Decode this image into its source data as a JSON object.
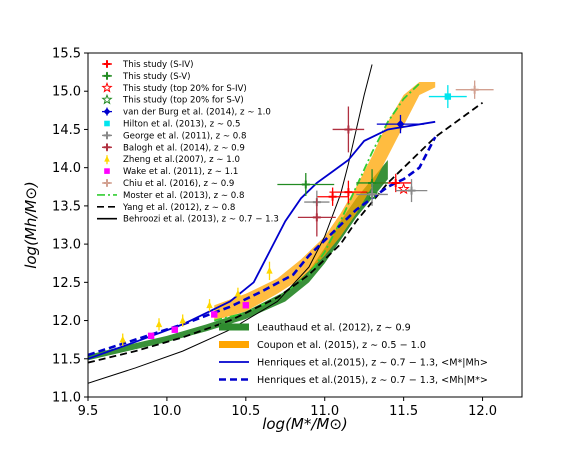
{
  "chart_data": {
    "type": "line",
    "xlabel": "log(M*/M⊙)",
    "ylabel": "log(Mh/M⊙)",
    "xlim": [
      9.5,
      12.25
    ],
    "ylim": [
      11.0,
      15.5
    ],
    "xticks": [
      "9.5",
      "10.0",
      "10.5",
      "11.0",
      "11.5",
      "12.0"
    ],
    "yticks": [
      "11.0",
      "11.5",
      "12.0",
      "12.5",
      "13.0",
      "13.5",
      "14.0",
      "14.5",
      "15.0",
      "15.5"
    ],
    "grid": false,
    "legend_upper_location": "upper-left",
    "legend_lower_location": "lower-right",
    "legend_upper": [
      {
        "label": "This study (S-IV)",
        "color": "#ff0000",
        "marker": "plus"
      },
      {
        "label": "This study (S-V)",
        "color": "#228b22",
        "marker": "plus"
      },
      {
        "label": "This study (top 20% for S-IV)",
        "color": "#ff0000",
        "marker": "open-star"
      },
      {
        "label": "This study (top 20% for S-V)",
        "color": "#228b22",
        "marker": "open-star"
      },
      {
        "label": "van der Burg et al. (2014), z ∼ 1.0",
        "color": "#0000cd",
        "marker": "diamond"
      },
      {
        "label": "Hilton et al. (2013), z ∼ 0.5",
        "color": "#00e5ee",
        "marker": "square"
      },
      {
        "label": "George et al. (2011), z ∼ 0.8",
        "color": "#888888",
        "marker": "plus"
      },
      {
        "label": "Balogh et al. (2014), z ∼ 0.9",
        "color": "#b03040",
        "marker": "plus"
      },
      {
        "label": "Zheng et al.(2007), z ∼ 1.0",
        "color": "#ffd700",
        "marker": "triangle"
      },
      {
        "label": "Wake et al. (2011), z ∼ 1.1",
        "color": "#ff00ff",
        "marker": "square"
      },
      {
        "label": "Chiu et al. (2016), z ∼ 0.9",
        "color": "#d2a090",
        "marker": "plus"
      },
      {
        "label": "Moster et al. (2013), z ∼ 0.8",
        "color": "#32cd32",
        "marker": "dashdot"
      },
      {
        "label": "Yang et al. (2012), z ∼ 0.8",
        "color": "#000000",
        "marker": "dashed"
      },
      {
        "label": "Behroozi et al. (2013), z ∼ 0.7 − 1.3",
        "color": "#000000",
        "marker": "solid"
      }
    ],
    "legend_lower": [
      {
        "label": "Leauthaud et al. (2012), z ∼ 0.9",
        "color": "#2e8b2e",
        "marker": "band"
      },
      {
        "label": "Coupon et al. (2015), z ∼ 0.5 − 1.0",
        "color": "#ffa500",
        "marker": "band"
      },
      {
        "label": "Henriques et al.(2015), z ∼ 0.7 − 1.3, <M*|Mh>",
        "color": "#0000cd",
        "marker": "solid"
      },
      {
        "label": "Henriques et al.(2015), z ∼ 0.7 − 1.3, <Mh|M*>",
        "color": "#0000cd",
        "marker": "dashed"
      }
    ],
    "series": [
      {
        "name": "Leauthaud et al. (2012), z ∼ 0.9",
        "type": "band",
        "color": "#2e8b2e",
        "x": [
          9.5,
          9.75,
          10.0,
          10.25,
          10.5,
          10.75,
          10.9,
          11.0,
          11.1,
          11.2,
          11.3,
          11.4
        ],
        "lower": [
          11.48,
          11.6,
          11.72,
          11.86,
          12.02,
          12.25,
          12.5,
          12.75,
          13.05,
          13.35,
          13.6,
          13.85
        ],
        "upper": [
          11.55,
          11.68,
          11.8,
          11.95,
          12.12,
          12.38,
          12.65,
          12.95,
          13.3,
          13.6,
          13.85,
          14.1
        ]
      },
      {
        "name": "Coupon et al. (2015), z ∼ 0.5 − 1.0",
        "type": "band",
        "color": "#ffa500",
        "x": [
          10.3,
          10.5,
          10.7,
          10.85,
          11.0,
          11.1,
          11.2,
          11.3,
          11.4,
          11.5,
          11.6,
          11.7
        ],
        "lower": [
          12.0,
          12.12,
          12.35,
          12.55,
          12.85,
          13.1,
          13.4,
          13.75,
          14.15,
          14.55,
          14.95,
          15.05
        ],
        "upper": [
          12.2,
          12.35,
          12.55,
          12.8,
          13.1,
          13.4,
          13.75,
          14.15,
          14.6,
          14.95,
          15.12,
          15.12
        ]
      },
      {
        "name": "Moster et al. (2013), z ∼ 0.8",
        "type": "line",
        "style": "dashdot",
        "color": "#32cd32",
        "x": [
          10.3,
          10.5,
          10.7,
          10.9,
          11.0,
          11.1,
          11.2,
          11.3,
          11.4,
          11.5,
          11.6
        ],
        "y": [
          12.0,
          12.1,
          12.3,
          12.6,
          12.9,
          13.3,
          13.75,
          14.2,
          14.6,
          14.9,
          15.1
        ]
      },
      {
        "name": "Yang et al. (2012), z ∼ 0.8",
        "type": "line",
        "style": "dashed",
        "color": "#000000",
        "x": [
          9.5,
          9.8,
          10.1,
          10.4,
          10.7,
          10.9,
          11.0,
          11.1,
          11.2,
          11.3,
          11.4,
          11.5,
          11.6,
          11.7,
          11.8,
          11.9,
          12.0
        ],
        "y": [
          11.45,
          11.6,
          11.78,
          12.0,
          12.3,
          12.6,
          12.8,
          13.0,
          13.3,
          13.55,
          13.8,
          14.0,
          14.2,
          14.4,
          14.55,
          14.7,
          14.85
        ]
      },
      {
        "name": "Behroozi et al. (2013), z ∼ 0.7 − 1.3",
        "type": "line",
        "style": "solid",
        "color": "#000000",
        "x": [
          9.5,
          9.8,
          10.1,
          10.4,
          10.7,
          10.9,
          11.0,
          11.1,
          11.15,
          11.2,
          11.25,
          11.3
        ],
        "y": [
          11.18,
          11.38,
          11.6,
          11.88,
          12.25,
          12.7,
          13.1,
          13.65,
          14.05,
          14.5,
          14.95,
          15.35
        ]
      },
      {
        "name": "Henriques et al.(2015), z ∼ 0.7 − 1.3, <M*|Mh>",
        "type": "line",
        "style": "solid",
        "color": "#0000cd",
        "x": [
          9.5,
          9.8,
          10.1,
          10.4,
          10.55,
          10.65,
          10.75,
          10.85,
          10.95,
          11.05,
          11.15,
          11.25,
          11.4,
          11.7
        ],
        "y": [
          11.5,
          11.72,
          11.95,
          12.25,
          12.5,
          12.9,
          13.3,
          13.6,
          13.8,
          13.95,
          14.1,
          14.35,
          14.5,
          14.6
        ]
      },
      {
        "name": "Henriques et al.(2015), z ∼ 0.7 − 1.3, <Mh|M*>",
        "type": "line",
        "style": "dashed",
        "color": "#0000cd",
        "x": [
          9.5,
          9.8,
          10.1,
          10.4,
          10.6,
          10.8,
          10.9,
          11.0,
          11.1,
          11.2,
          11.3,
          11.4,
          11.5,
          11.6,
          11.7
        ],
        "y": [
          11.55,
          11.75,
          11.95,
          12.18,
          12.38,
          12.6,
          12.85,
          13.05,
          13.25,
          13.45,
          13.6,
          13.75,
          13.85,
          14.0,
          14.4
        ]
      }
    ],
    "points": [
      {
        "name": "This study (S-IV)",
        "color": "#ff0000",
        "marker": "plus",
        "x": [
          11.05,
          11.15,
          11.45
        ],
        "y": [
          13.62,
          13.68,
          13.8
        ],
        "xerr": [
          0.1,
          0.12,
          0.1
        ],
        "yerr": [
          0.12,
          0.15,
          0.12
        ]
      },
      {
        "name": "This study (S-V)",
        "color": "#228b22",
        "marker": "plus",
        "x": [
          10.88,
          11.3
        ],
        "y": [
          13.78,
          13.8
        ],
        "xerr": [
          0.18,
          0.1
        ],
        "yerr": [
          0.15,
          0.18
        ]
      },
      {
        "name": "This study (top 20% for S-IV)",
        "color": "#ff0000",
        "marker": "open-star",
        "x": [
          11.5
        ],
        "y": [
          13.72
        ],
        "xerr": [
          0.0
        ],
        "yerr": [
          0.0
        ]
      },
      {
        "name": "This study (top 20% for S-V)",
        "color": "#228b22",
        "marker": "open-star",
        "x": [
          11.3
        ],
        "y": [
          13.65
        ],
        "xerr": [
          0.0
        ],
        "yerr": [
          0.0
        ]
      },
      {
        "name": "van der Burg et al. (2014), z ∼ 1.0",
        "color": "#0000cd",
        "marker": "diamond",
        "x": [
          11.48
        ],
        "y": [
          14.57
        ],
        "xerr": [
          0.15
        ],
        "yerr": [
          0.12
        ]
      },
      {
        "name": "Hilton et al. (2013), z ∼ 0.5",
        "color": "#00e5ee",
        "marker": "square",
        "x": [
          11.78
        ],
        "y": [
          14.93
        ],
        "xerr": [
          0.12
        ],
        "yerr": [
          0.15
        ]
      },
      {
        "name": "George et al. (2011), z ∼ 0.8",
        "color": "#888888",
        "marker": "plus",
        "x": [
          10.95,
          11.3,
          11.55
        ],
        "y": [
          13.55,
          13.65,
          13.7
        ],
        "xerr": [
          0.08,
          0.1,
          0.1
        ],
        "yerr": [
          0.15,
          0.15,
          0.15
        ]
      },
      {
        "name": "Balogh et al. (2014), z ∼ 0.9",
        "color": "#b03040",
        "marker": "plus",
        "x": [
          10.95,
          11.15
        ],
        "y": [
          13.35,
          14.5
        ],
        "xerr": [
          0.12,
          0.1
        ],
        "yerr": [
          0.25,
          0.3
        ]
      },
      {
        "name": "Zheng et al.(2007), z ∼ 1.0",
        "color": "#ffd700",
        "marker": "triangle",
        "x": [
          9.72,
          9.95,
          10.1,
          10.27,
          10.45,
          10.65
        ],
        "y": [
          11.75,
          11.95,
          12.0,
          12.2,
          12.35,
          12.65
        ],
        "xerr": [
          0,
          0,
          0,
          0,
          0,
          0
        ],
        "yerr": [
          0.08,
          0.08,
          0.08,
          0.08,
          0.08,
          0.12
        ]
      },
      {
        "name": "Wake et al. (2011), z ∼ 1.1",
        "color": "#ff00ff",
        "marker": "square",
        "x": [
          9.9,
          10.05,
          10.3,
          10.5
        ],
        "y": [
          11.8,
          11.88,
          12.08,
          12.2
        ],
        "xerr": [
          0,
          0,
          0,
          0
        ],
        "yerr": [
          0,
          0,
          0,
          0
        ]
      },
      {
        "name": "Chiu et al. (2016), z ∼ 0.9",
        "color": "#d2a090",
        "marker": "plus",
        "x": [
          11.95
        ],
        "y": [
          15.02
        ],
        "xerr": [
          0.12
        ],
        "yerr": [
          0.12
        ]
      }
    ]
  }
}
